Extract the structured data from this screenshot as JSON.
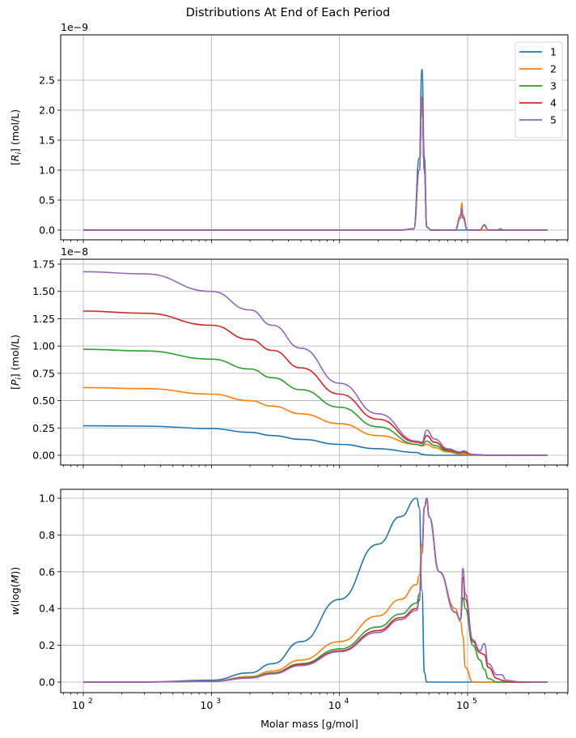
{
  "figure": {
    "title": "Distributions At End of Each Period",
    "xlabel": "Molar mass [g/mol]"
  },
  "colors": {
    "1": "#1f77b4",
    "2": "#ff7f0e",
    "3": "#2ca02c",
    "4": "#d62728",
    "5": "#9467bd",
    "grid": "#b0b0b0"
  },
  "chart_data": [
    {
      "type": "line",
      "title": "Distributions At End of Each Period",
      "panel": "top",
      "ylabel": "[R_i] (mol/L)",
      "offset_text": "1e−9",
      "xscale": "log",
      "xlabel": "",
      "xlim": [
        65,
        700000
      ],
      "ylim": [
        -0.135,
        2.84
      ],
      "yticks": [
        0.0,
        0.5,
        1.0,
        1.5,
        2.0,
        2.5
      ],
      "ytick_labels": [
        "0.0",
        "0.5",
        "1.0",
        "1.5",
        "2.0",
        "2.5"
      ],
      "grid": true,
      "legend": {
        "position": "upper right",
        "entries": [
          "1",
          "2",
          "3",
          "4",
          "5"
        ]
      },
      "x": [
        100,
        30000,
        38000,
        42000,
        44000,
        46000,
        48000,
        52000,
        60000,
        80000,
        88000,
        90000,
        92000,
        100000,
        125000,
        135000,
        145000,
        170000,
        180000,
        190000,
        420000
      ],
      "series": [
        {
          "name": "1",
          "values": [
            0,
            0,
            0.02,
            1.2,
            2.68,
            1.2,
            0.05,
            0,
            0,
            0,
            0,
            0,
            0,
            0,
            0,
            0,
            0,
            0,
            0,
            0,
            0
          ]
        },
        {
          "name": "2",
          "values": [
            0,
            0,
            0.02,
            1.0,
            2.22,
            1.0,
            0.05,
            0,
            0,
            0,
            0.25,
            0.45,
            0.25,
            0,
            0,
            0,
            0,
            0,
            0,
            0,
            0
          ]
        },
        {
          "name": "3",
          "values": [
            0,
            0,
            0.02,
            1.0,
            2.2,
            1.0,
            0.05,
            0,
            0,
            0,
            0.2,
            0.36,
            0.2,
            0,
            0,
            0.09,
            0,
            0,
            0,
            0,
            0
          ]
        },
        {
          "name": "4",
          "values": [
            0,
            0,
            0.02,
            1.0,
            2.2,
            1.0,
            0.05,
            0,
            0,
            0,
            0.2,
            0.36,
            0.2,
            0,
            0,
            0.08,
            0,
            0,
            0.02,
            0,
            0
          ]
        },
        {
          "name": "5",
          "values": [
            0,
            0,
            0.02,
            1.0,
            2.2,
            1.0,
            0.05,
            0,
            0,
            0,
            0.2,
            0.36,
            0.2,
            0,
            0,
            0.08,
            0,
            0,
            0.02,
            0,
            0
          ]
        }
      ]
    },
    {
      "type": "line",
      "panel": "middle",
      "ylabel": "[P_i] (mol/L)",
      "offset_text": "1e−8",
      "xscale": "log",
      "xlim": [
        65,
        700000
      ],
      "ylim": [
        -0.09,
        1.77
      ],
      "yticks": [
        0.0,
        0.25,
        0.5,
        0.75,
        1.0,
        1.25,
        1.5,
        1.75
      ],
      "ytick_labels": [
        "0.00",
        "0.25",
        "0.50",
        "0.75",
        "1.00",
        "1.25",
        "1.50",
        "1.75"
      ],
      "grid": true,
      "x": [
        100,
        300,
        1000,
        2000,
        3000,
        5000,
        10000,
        20000,
        40000,
        44000,
        48000,
        55000,
        70000,
        88000,
        92000,
        110000,
        150000,
        420000
      ],
      "series": [
        {
          "name": "1",
          "values": [
            0.27,
            0.267,
            0.245,
            0.21,
            0.18,
            0.145,
            0.1,
            0.06,
            0.025,
            0.01,
            0.002,
            0,
            0,
            0,
            0,
            0,
            0,
            0
          ]
        },
        {
          "name": "2",
          "values": [
            0.62,
            0.61,
            0.56,
            0.5,
            0.45,
            0.38,
            0.29,
            0.18,
            0.1,
            0.085,
            0.1,
            0.07,
            0.03,
            0.01,
            0.01,
            0.002,
            0,
            0
          ]
        },
        {
          "name": "3",
          "values": [
            0.97,
            0.955,
            0.88,
            0.79,
            0.71,
            0.6,
            0.44,
            0.26,
            0.1,
            0.09,
            0.13,
            0.09,
            0.04,
            0.02,
            0.025,
            0.005,
            0,
            0
          ]
        },
        {
          "name": "4",
          "values": [
            1.32,
            1.3,
            1.19,
            1.06,
            0.96,
            0.8,
            0.56,
            0.33,
            0.12,
            0.11,
            0.18,
            0.12,
            0.05,
            0.025,
            0.03,
            0.006,
            0.001,
            0
          ]
        },
        {
          "name": "5",
          "values": [
            1.68,
            1.66,
            1.5,
            1.33,
            1.19,
            0.98,
            0.66,
            0.38,
            0.13,
            0.12,
            0.23,
            0.15,
            0.06,
            0.03,
            0.04,
            0.008,
            0.001,
            0
          ]
        }
      ]
    },
    {
      "type": "line",
      "panel": "bottom",
      "ylabel": "w(log(M))",
      "xlabel": "Molar mass [g/mol]",
      "xscale": "log",
      "xlim": [
        65,
        700000
      ],
      "xticks": [
        100,
        1000,
        10000,
        100000
      ],
      "xtick_labels": [
        "10^2",
        "10^3",
        "10^4",
        "10^5"
      ],
      "ylim": [
        -0.05,
        1.055
      ],
      "yticks": [
        0.0,
        0.2,
        0.4,
        0.6,
        0.8,
        1.0
      ],
      "ytick_labels": [
        "0.0",
        "0.2",
        "0.4",
        "0.6",
        "0.8",
        "1.0"
      ],
      "grid": true,
      "x": [
        100,
        300,
        1000,
        2000,
        3000,
        5000,
        10000,
        20000,
        30000,
        40000,
        42000,
        44000,
        46000,
        48000,
        50000,
        60000,
        80000,
        88000,
        92000,
        96000,
        110000,
        125000,
        135000,
        145000,
        170000,
        185000,
        200000,
        250000,
        420000
      ],
      "series": [
        {
          "name": "1",
          "values": [
            0,
            0.001,
            0.01,
            0.05,
            0.1,
            0.22,
            0.45,
            0.75,
            0.9,
            1.0,
            0.95,
            0.5,
            0.05,
            0,
            0,
            0,
            0,
            0,
            0,
            0,
            0,
            0,
            0,
            0,
            0,
            0,
            0,
            0,
            0
          ]
        },
        {
          "name": "2",
          "values": [
            0,
            0.0005,
            0.005,
            0.03,
            0.06,
            0.12,
            0.22,
            0.36,
            0.45,
            0.53,
            0.58,
            0.75,
            0.95,
            1.0,
            0.9,
            0.6,
            0.4,
            0.33,
            0.25,
            0.08,
            0,
            0,
            0,
            0,
            0,
            0,
            0,
            0,
            0
          ]
        },
        {
          "name": "3",
          "values": [
            0,
            0.0005,
            0.004,
            0.025,
            0.05,
            0.1,
            0.18,
            0.3,
            0.37,
            0.43,
            0.48,
            0.7,
            0.95,
            1.0,
            0.9,
            0.6,
            0.38,
            0.34,
            0.46,
            0.4,
            0.2,
            0.12,
            0.07,
            0.02,
            0,
            0,
            0,
            0,
            0
          ]
        },
        {
          "name": "4",
          "values": [
            0,
            0.0005,
            0.004,
            0.023,
            0.047,
            0.095,
            0.17,
            0.28,
            0.35,
            0.4,
            0.45,
            0.7,
            0.95,
            1.0,
            0.9,
            0.6,
            0.38,
            0.34,
            0.57,
            0.45,
            0.22,
            0.16,
            0.15,
            0.08,
            0.02,
            0.01,
            0.002,
            0,
            0
          ]
        },
        {
          "name": "5",
          "values": [
            0,
            0.0005,
            0.004,
            0.022,
            0.045,
            0.09,
            0.165,
            0.27,
            0.34,
            0.39,
            0.44,
            0.7,
            0.95,
            1.0,
            0.9,
            0.6,
            0.38,
            0.34,
            0.62,
            0.48,
            0.23,
            0.17,
            0.21,
            0.1,
            0.04,
            0.04,
            0.01,
            0.002,
            0
          ]
        }
      ]
    }
  ]
}
